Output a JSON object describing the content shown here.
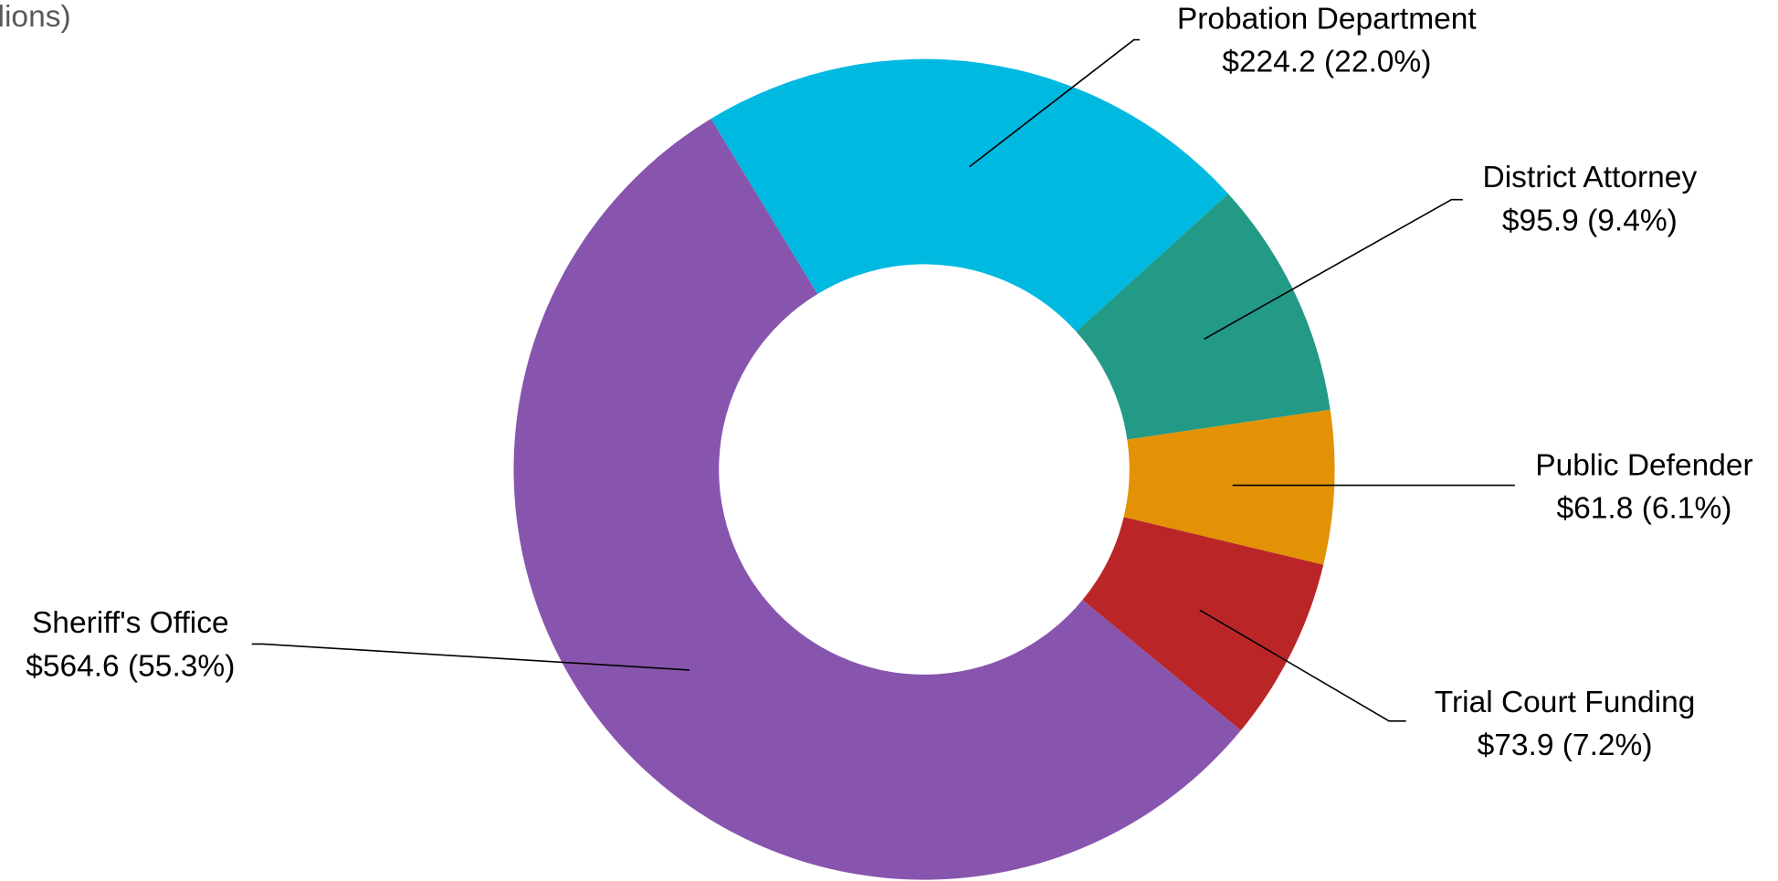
{
  "chart_data": {
    "type": "donut",
    "title": "lions)",
    "categories": [
      "Probation Department",
      "District Attorney",
      "Public Defender",
      "Trial Court Funding",
      "Sheriff's Office"
    ],
    "values": [
      224.2,
      95.9,
      61.8,
      73.9,
      564.6
    ],
    "value_labels": [
      "$224.2 (22.0%)",
      "$95.9 (9.4%)",
      "$61.8 (6.1%)",
      "$73.9 (7.2%)",
      "$564.6 (55.3%)"
    ],
    "colors": [
      "#00b9e0",
      "#229a86",
      "#e39206",
      "#ba2627",
      "#8855ae"
    ]
  }
}
